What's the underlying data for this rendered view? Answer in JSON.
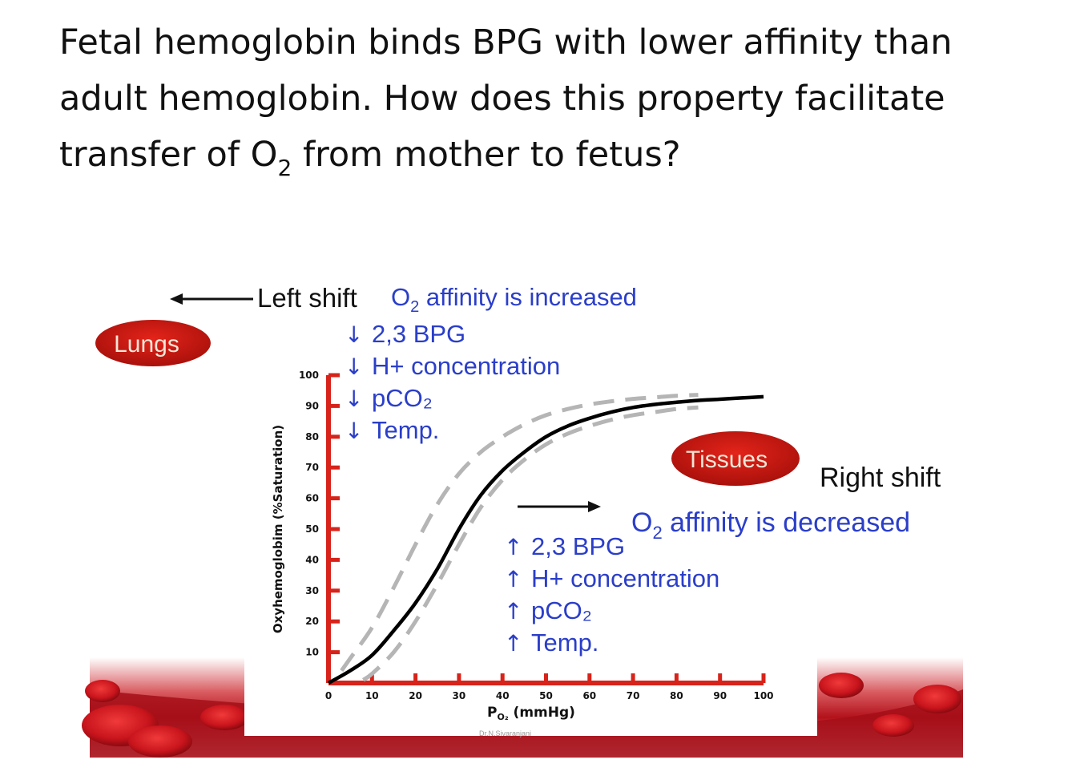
{
  "question": {
    "line1": "Fetal hemoglobin binds BPG with lower affinity than",
    "line2": "adult hemoglobin. How does this property facilitate",
    "line3_pre": "transfer of O",
    "line3_sub": "2",
    "line3_post": " from mother to fetus?"
  },
  "left_shift": {
    "label": "Left shift",
    "affinity_pre": "O",
    "affinity_sub": "2",
    "affinity_post": " affinity is increased",
    "arrow_glyph": "↓",
    "factors": [
      "2,3 BPG",
      "H+ concentration",
      "pCO₂",
      "Temp."
    ]
  },
  "right_shift": {
    "label": "Right shift",
    "affinity_pre": "O",
    "affinity_sub": "2",
    "affinity_post": " affinity is decreased",
    "arrow_glyph": "↑",
    "factors": [
      "2,3 BPG",
      "H+ concentration",
      "pCO₂",
      "Temp."
    ]
  },
  "badges": {
    "lungs": "Lungs",
    "tissues": "Tissues"
  },
  "watermark": "Dr.N.Sivaranjani",
  "colors": {
    "axis_red": "#d7231a",
    "blue_text": "#2a3ec9",
    "badge_red": "#c4150f",
    "badge_text": "#f2e6d6",
    "curve_black": "#000000",
    "curve_gray": "#b5b5b5",
    "blood_red": "#b3121b"
  },
  "chart_data": {
    "type": "line",
    "xlabel_main": "P",
    "xlabel_sub": "O₂",
    "xlabel_unit": " (mmHg)",
    "ylabel": "Oxyhemoglobim (%Saturation)",
    "xlim": [
      0,
      100
    ],
    "ylim": [
      0,
      100
    ],
    "x_ticks": [
      0,
      10,
      20,
      30,
      40,
      50,
      60,
      70,
      80,
      90,
      100
    ],
    "y_ticks": [
      10,
      20,
      30,
      40,
      50,
      60,
      70,
      80,
      90,
      100
    ],
    "series": [
      {
        "style": "solid-black",
        "x": [
          0,
          5,
          10,
          15,
          20,
          25,
          30,
          35,
          40,
          45,
          50,
          55,
          60,
          65,
          70,
          75,
          80,
          85,
          90,
          95,
          100
        ],
        "y": [
          0,
          4,
          9,
          17,
          26,
          37,
          50,
          61,
          69,
          75,
          80,
          83.5,
          86,
          88,
          89.5,
          90.5,
          91.2,
          91.8,
          92.2,
          92.6,
          93
        ]
      },
      {
        "style": "dashed-gray-left",
        "x": [
          3,
          5,
          10,
          15,
          20,
          25,
          30,
          35,
          40,
          45,
          50,
          55,
          60,
          65,
          70,
          75,
          80,
          85
        ],
        "y": [
          4,
          8,
          18,
          31,
          45,
          58,
          68,
          75,
          80,
          84,
          87,
          89,
          90.5,
          91.5,
          92.3,
          92.8,
          93.3,
          93.6
        ]
      },
      {
        "style": "dashed-gray-right",
        "x": [
          8,
          10,
          15,
          20,
          25,
          30,
          35,
          40,
          45,
          50,
          55,
          60,
          65,
          70,
          75,
          80,
          85
        ],
        "y": [
          1,
          3,
          10,
          20,
          32,
          45,
          57,
          66,
          72.5,
          77.5,
          81,
          83.5,
          85.5,
          87,
          88,
          89,
          89.5
        ]
      }
    ]
  }
}
